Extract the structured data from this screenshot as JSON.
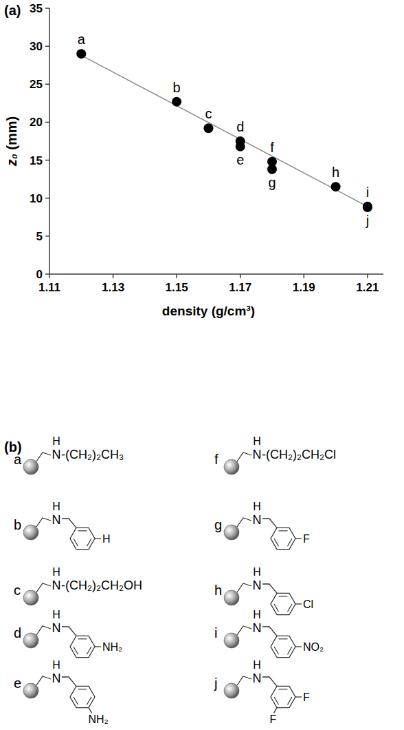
{
  "chart_data": {
    "type": "scatter",
    "panel_label": "(a)",
    "x_label": "density (g/cm³)",
    "y_label": "z₀ (mm)",
    "xlim": [
      1.11,
      1.215
    ],
    "xticks": [
      1.11,
      1.13,
      1.15,
      1.17,
      1.19,
      1.21
    ],
    "ylim": [
      0,
      35
    ],
    "yticks": [
      0,
      5,
      10,
      15,
      20,
      25,
      30,
      35
    ],
    "grid": false,
    "series": [
      {
        "type": "scatter",
        "color": "#000000",
        "marker": "circle",
        "x": [
          1.12,
          1.15,
          1.16,
          1.17,
          1.17,
          1.18,
          1.18,
          1.2,
          1.21,
          1.21
        ],
        "values": [
          29.0,
          22.7,
          19.2,
          17.5,
          16.8,
          14.8,
          13.8,
          11.5,
          8.9,
          8.8
        ],
        "point_labels": [
          "a",
          "b",
          "c",
          "d",
          "e",
          "f",
          "g",
          "h",
          "i",
          "j"
        ]
      },
      {
        "type": "line",
        "color": "#8c8c8c",
        "line_style": "solid",
        "x": [
          1.12,
          1.21
        ],
        "values": [
          28.8,
          8.9
        ]
      }
    ]
  },
  "panel_b": {
    "label": "(b)",
    "structures": [
      {
        "letter": "a",
        "h": "H",
        "n": "N",
        "chain": "-(CH₂)₂CH₃"
      },
      {
        "letter": "b",
        "h": "H",
        "n": "N",
        "substituents": [
          {
            "text": "H",
            "position": "meta"
          }
        ]
      },
      {
        "letter": "c",
        "h": "H",
        "n": "N",
        "chain": "-(CH₂)₂CH₂OH"
      },
      {
        "letter": "d",
        "h": "H",
        "n": "N",
        "substituents": [
          {
            "text": "NH₂",
            "position": "meta"
          }
        ]
      },
      {
        "letter": "e",
        "h": "H",
        "n": "N",
        "substituents": [
          {
            "text": "NH₂",
            "position": "para"
          }
        ]
      },
      {
        "letter": "f",
        "h": "H",
        "n": "N",
        "chain": "-(CH₂)₂CH₂Cl"
      },
      {
        "letter": "g",
        "h": "H",
        "n": "N",
        "substituents": [
          {
            "text": "F",
            "position": "meta"
          }
        ]
      },
      {
        "letter": "h",
        "h": "H",
        "n": "N",
        "substituents": [
          {
            "text": "Cl",
            "position": "meta"
          }
        ]
      },
      {
        "letter": "i",
        "h": "H",
        "n": "N",
        "substituents": [
          {
            "text": "NO₂",
            "position": "meta"
          }
        ]
      },
      {
        "letter": "j",
        "h": "H",
        "n": "N",
        "substituents": [
          {
            "text": "F",
            "position": "meta"
          },
          {
            "text": "F",
            "position": "meta"
          }
        ]
      }
    ]
  }
}
